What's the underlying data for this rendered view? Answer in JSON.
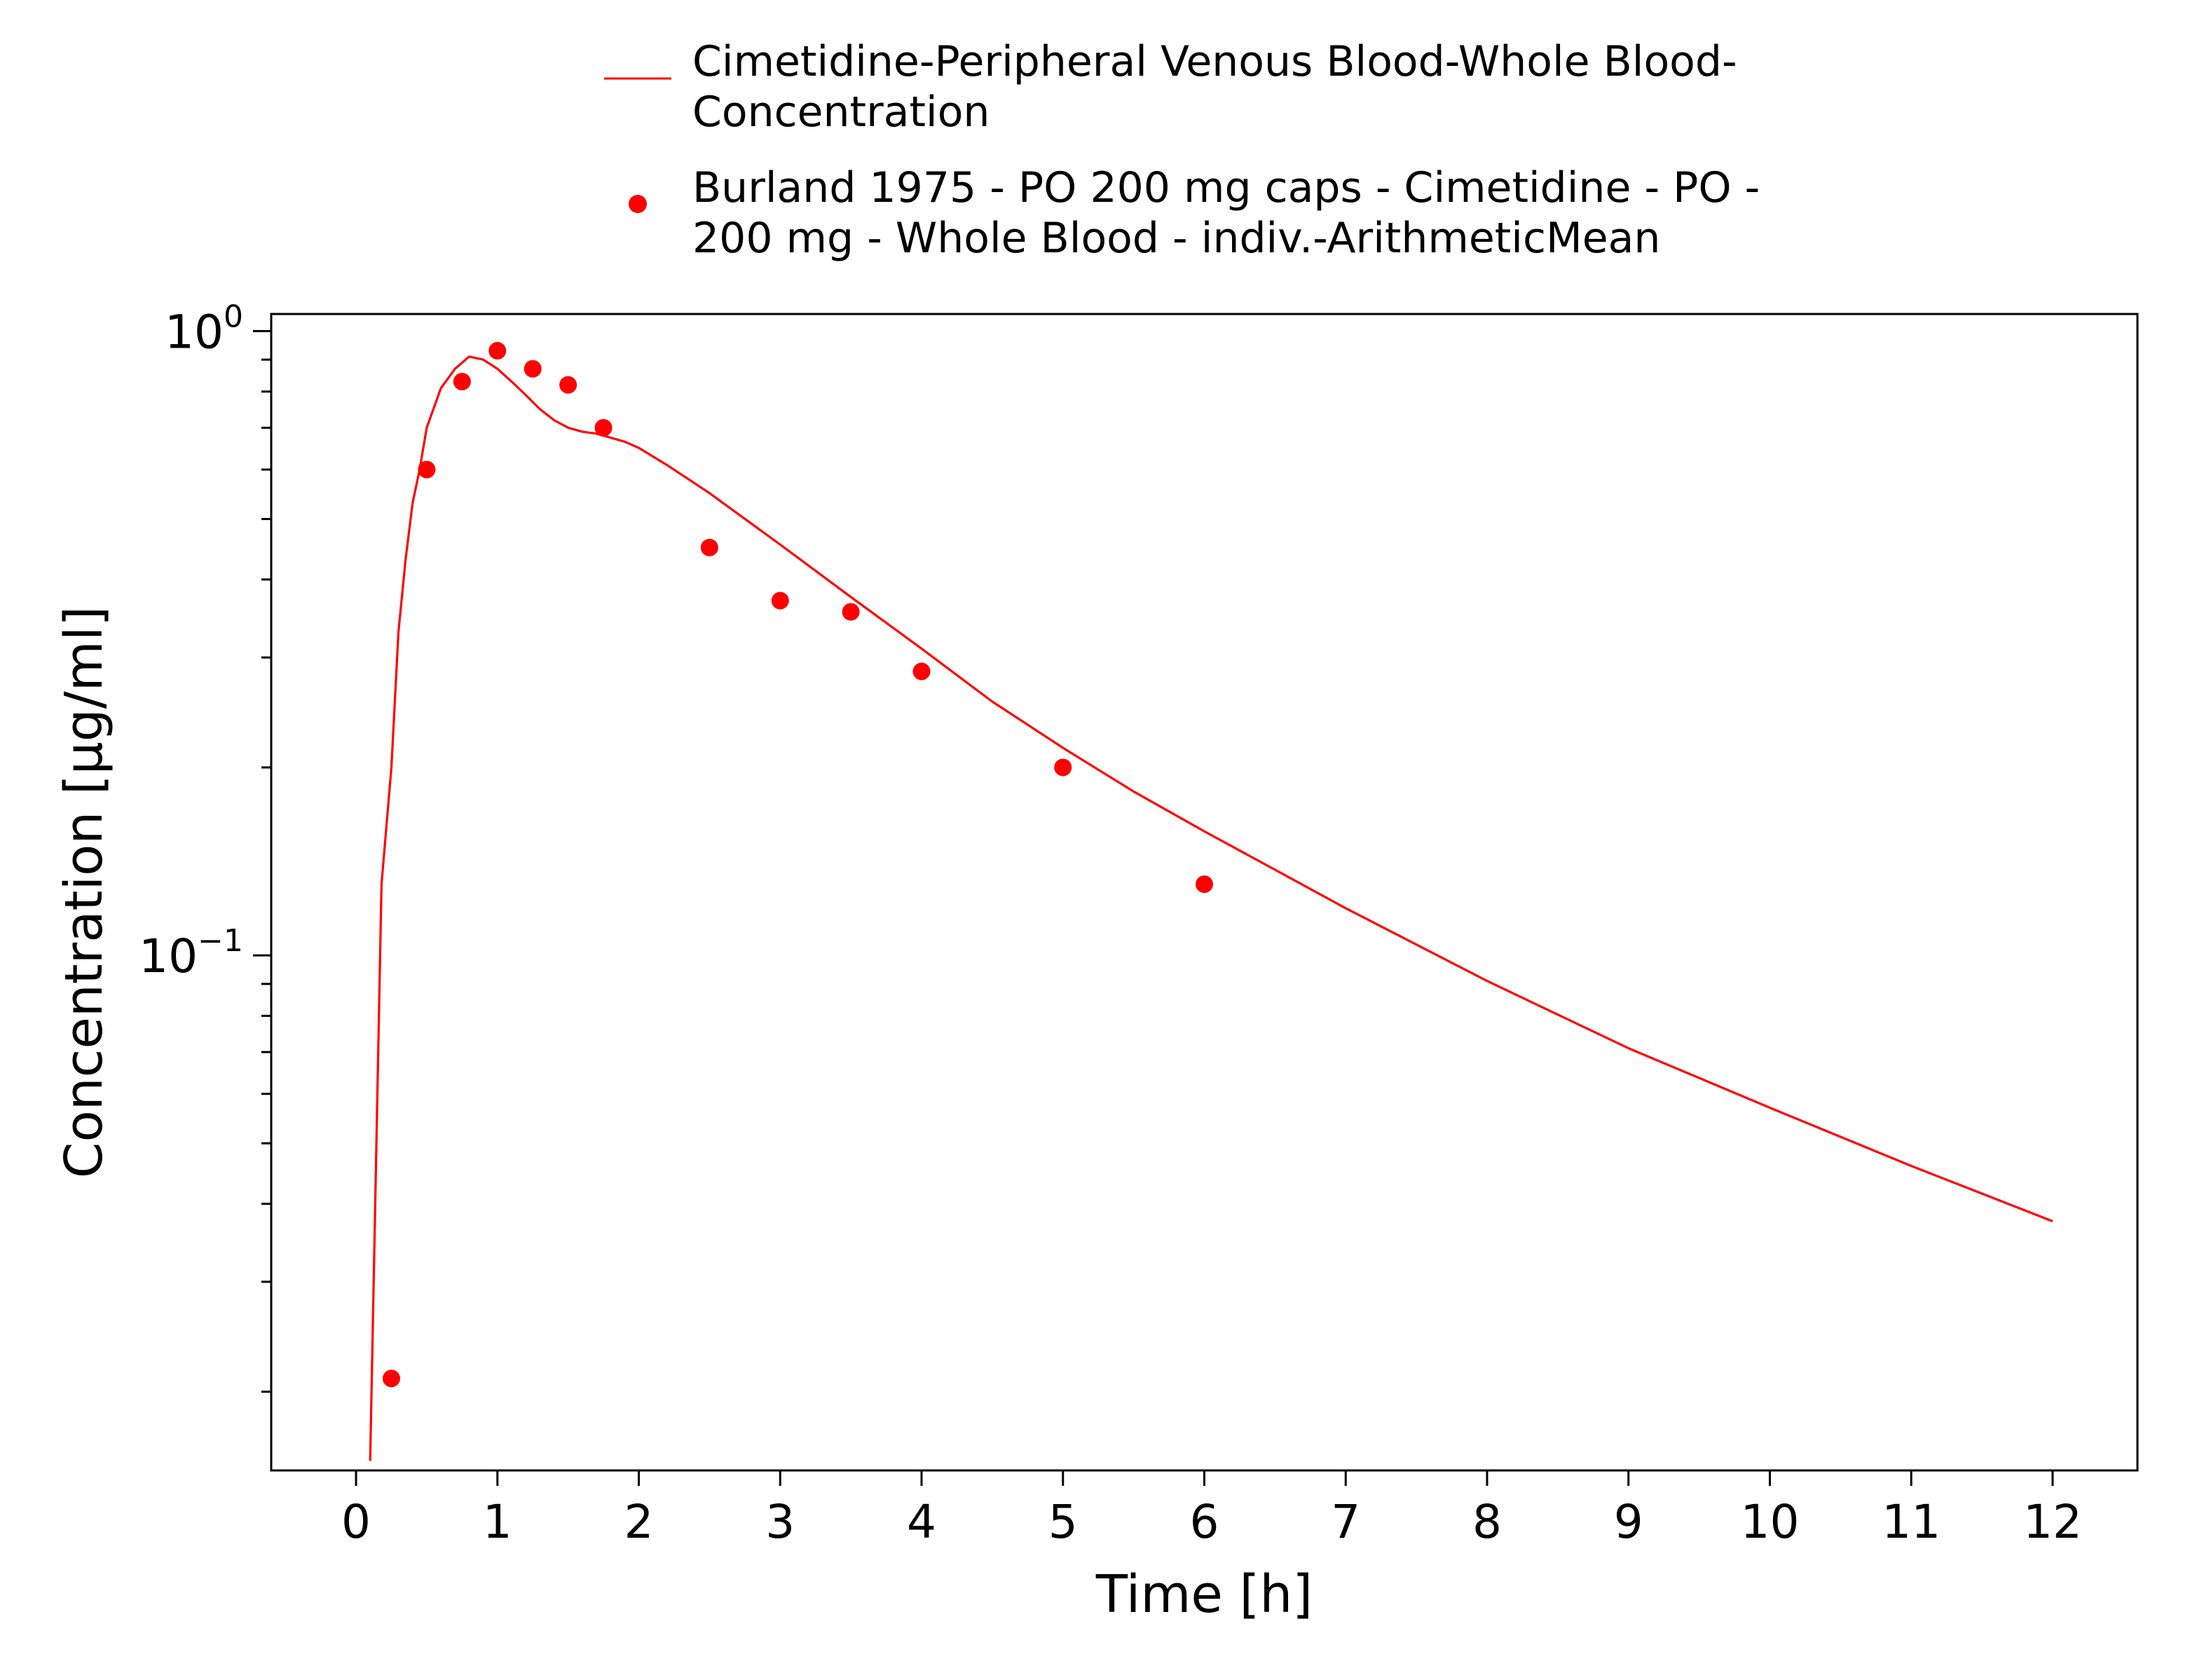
{
  "chart_data": {
    "type": "line",
    "title": "",
    "xlabel": "Time [h]",
    "ylabel": "Concentration [µg/ml]",
    "x_scale": "linear",
    "y_scale": "log",
    "xlim": [
      -0.6,
      12.6
    ],
    "ylim": [
      0.01496,
      1.065
    ],
    "x_ticks": [
      0,
      1,
      2,
      3,
      4,
      5,
      6,
      7,
      8,
      9,
      10,
      11,
      12
    ],
    "y_ticks": [
      {
        "value": 0.1,
        "base": "10",
        "exponent": "−1"
      },
      {
        "value": 1.0,
        "base": "10",
        "exponent": "0"
      }
    ],
    "grid": false,
    "legend_position": "top",
    "colors": {
      "series": "#ff0000"
    },
    "series": [
      {
        "name": "Cimetidine-Peripheral Venous Blood-Whole Blood-Concentration",
        "kind": "line",
        "x": [
          0.1,
          0.18,
          0.25,
          0.3,
          0.35,
          0.4,
          0.45,
          0.5,
          0.6,
          0.7,
          0.8,
          0.9,
          1.0,
          1.1,
          1.2,
          1.3,
          1.4,
          1.5,
          1.6,
          1.7,
          1.8,
          1.9,
          2.0,
          2.2,
          2.5,
          3.0,
          3.5,
          4.0,
          4.5,
          5.0,
          5.5,
          6.0,
          7.0,
          8.0,
          9.0,
          10.0,
          11.0,
          12.0
        ],
        "y": [
          0.0155,
          0.13,
          0.2,
          0.33,
          0.43,
          0.53,
          0.6,
          0.7,
          0.81,
          0.87,
          0.91,
          0.9,
          0.87,
          0.83,
          0.79,
          0.75,
          0.72,
          0.7,
          0.69,
          0.685,
          0.675,
          0.665,
          0.65,
          0.61,
          0.55,
          0.455,
          0.375,
          0.31,
          0.255,
          0.215,
          0.183,
          0.158,
          0.119,
          0.091,
          0.071,
          0.057,
          0.046,
          0.0375
        ]
      },
      {
        "name": "Burland 1975 - PO 200 mg caps - Cimetidine - PO - 200 mg - Whole Blood - indiv.-ArithmeticMean",
        "kind": "scatter",
        "x": [
          0.25,
          0.5,
          0.75,
          1.0,
          1.25,
          1.5,
          1.75,
          2.5,
          3.0,
          3.5,
          4.0,
          5.0,
          6.0
        ],
        "y": [
          0.021,
          0.6,
          0.83,
          0.93,
          0.87,
          0.82,
          0.7,
          0.45,
          0.37,
          0.355,
          0.285,
          0.2,
          0.13
        ]
      }
    ]
  }
}
